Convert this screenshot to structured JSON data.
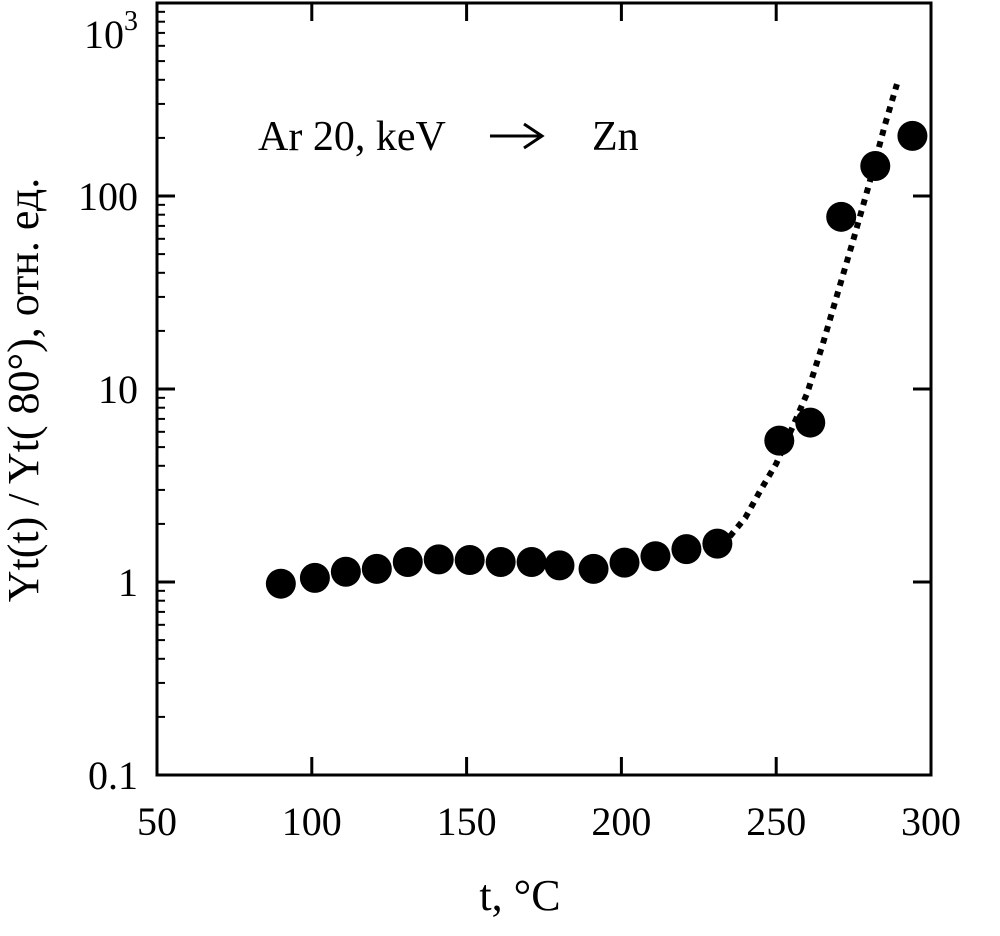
{
  "chart_data": {
    "type": "scatter",
    "xlabel": "t, °C",
    "ylabel": "Yt(t) / Yt( 80°), отн. ед.",
    "xlim": [
      50,
      300
    ],
    "ylim": [
      0.1,
      1000
    ],
    "y_scale": "log",
    "grid": false,
    "x_ticks": [
      {
        "value": 50,
        "label": "50"
      },
      {
        "value": 100,
        "label": "100"
      },
      {
        "value": 150,
        "label": "150"
      },
      {
        "value": 200,
        "label": "200"
      },
      {
        "value": 250,
        "label": "250"
      },
      {
        "value": 300,
        "label": "300"
      }
    ],
    "y_ticks": [
      {
        "value": 0.1,
        "label": "0.1"
      },
      {
        "value": 1,
        "label": "1"
      },
      {
        "value": 10,
        "label": "10"
      },
      {
        "value": 100,
        "label": "100"
      },
      {
        "value": 1000,
        "label": "10",
        "exponent": "3"
      }
    ],
    "annotation": {
      "left": "Ar 20, keV",
      "right": "Zn"
    },
    "series": [
      {
        "style": "markers",
        "color": "#000000",
        "x": [
          90,
          101,
          111,
          121,
          131,
          141,
          151,
          161,
          171,
          180,
          191,
          201,
          211,
          221,
          231,
          251,
          261,
          271,
          282,
          294
        ],
        "y": [
          0.98,
          1.05,
          1.13,
          1.17,
          1.27,
          1.31,
          1.3,
          1.27,
          1.27,
          1.22,
          1.17,
          1.26,
          1.36,
          1.48,
          1.58,
          5.4,
          6.7,
          78,
          143,
          205
        ]
      },
      {
        "style": "dotted-line",
        "color": "#000000",
        "x": [
          235,
          240,
          245,
          250,
          255,
          260,
          265,
          270,
          275,
          280,
          285,
          289
        ],
        "y": [
          1.72,
          2.15,
          3.0,
          4.1,
          6.2,
          9.5,
          17,
          32,
          60,
          115,
          230,
          380
        ]
      }
    ]
  }
}
